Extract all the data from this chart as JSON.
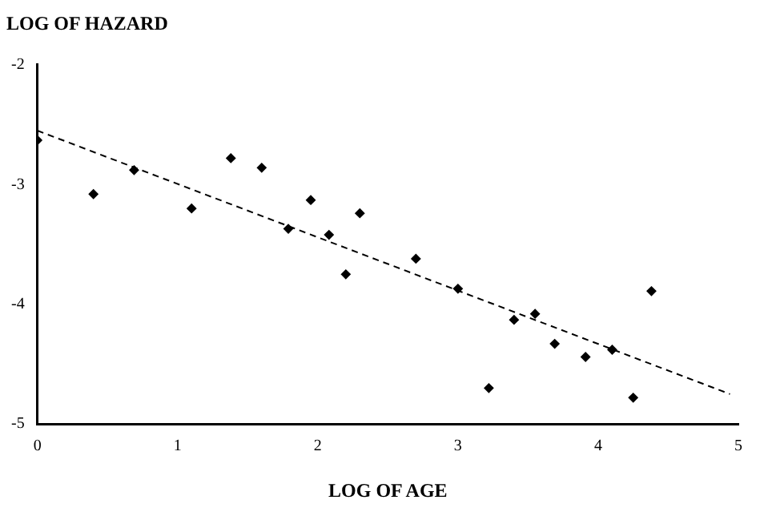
{
  "chart_data": {
    "type": "scatter",
    "ylabel": "LOG OF HAZARD",
    "xlabel": "LOG OF AGE",
    "xlim": [
      0,
      5
    ],
    "xticks": [
      0,
      1,
      2,
      3,
      4,
      5
    ],
    "ylim": [
      -5,
      -2
    ],
    "yticks": [
      -5,
      -4,
      -3,
      -2
    ],
    "grid": false,
    "legend": false,
    "marker": "diamond",
    "series": [
      {
        "color": "#000000",
        "x": [
          0,
          0.4,
          0.69,
          1.1,
          1.38,
          1.6,
          1.79,
          1.95,
          2.08,
          2.2,
          2.3,
          2.7,
          3.0,
          3.22,
          3.4,
          3.55,
          3.69,
          3.91,
          4.1,
          4.25,
          4.38
        ],
        "values": [
          -2.63,
          -3.08,
          -2.88,
          -3.2,
          -2.78,
          -2.86,
          -3.37,
          -3.13,
          -3.42,
          -3.75,
          -3.24,
          -3.62,
          -3.87,
          -4.7,
          -4.13,
          -4.08,
          -4.33,
          -4.44,
          -4.38,
          -4.78,
          -3.89
        ]
      },
      {
        "type": "line",
        "color": "#000000",
        "line_style": "dashed",
        "marker": "none",
        "x": [
          0,
          4.94
        ],
        "values": [
          -2.55,
          -4.75
        ]
      }
    ]
  }
}
